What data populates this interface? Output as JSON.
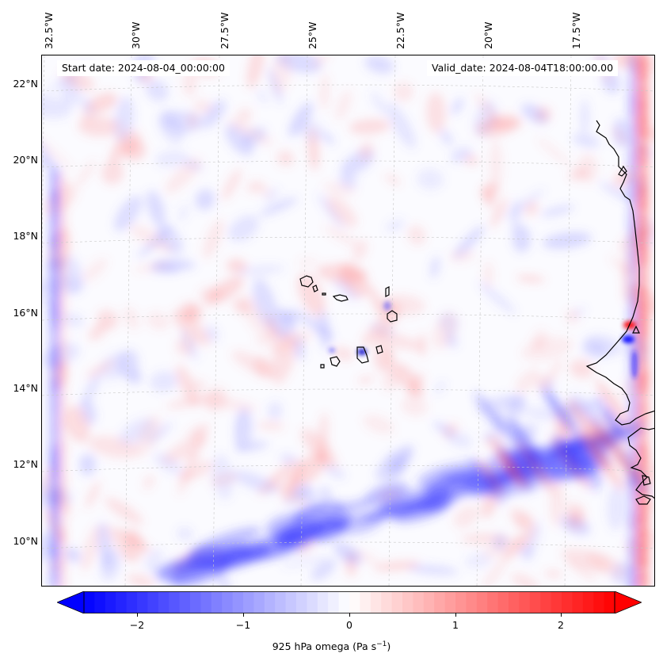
{
  "map": {
    "start_date": "Start date: 2024-08-04_00:00:00",
    "valid_date": "Valid_date: 2024-08-04T18:00:00.00",
    "lon_labels": [
      "32.5°W",
      "30°W",
      "27.5°W",
      "25°W",
      "22.5°W",
      "20°W",
      "17.5°W"
    ],
    "lat_labels": [
      "22°N",
      "20°N",
      "18°N",
      "16°N",
      "14°N",
      "12°N",
      "10°N"
    ],
    "colors": {
      "negative": "#0000ff",
      "neutral": "#ffffff",
      "positive": "#ff0000",
      "coast": "#000000",
      "grid": "#c8c8c8"
    }
  },
  "colorbar": {
    "label_prefix": "925 hPa omega (Pa s",
    "label_exponent": "−1",
    "label_suffix": ")",
    "ticks": [
      "−2",
      "−1",
      "0",
      "1",
      "2"
    ],
    "tick_values": [
      -2,
      -1,
      0,
      1,
      2
    ],
    "range": [
      -2.5,
      2.5
    ],
    "extend": "both"
  }
}
